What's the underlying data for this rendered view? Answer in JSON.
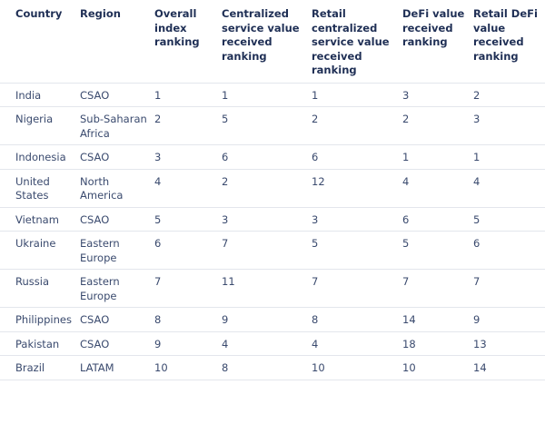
{
  "chart_data": {
    "type": "table",
    "columns": [
      "Country",
      "Region",
      "Overall index ranking",
      "Centralized service value received ranking",
      "Retail centralized service value received ranking",
      "DeFi value received ranking",
      "Retail DeFi value received ranking"
    ],
    "rows": [
      [
        "India",
        "CSAO",
        "1",
        "1",
        "1",
        "3",
        "2"
      ],
      [
        "Nigeria",
        "Sub-Saharan Africa",
        "2",
        "5",
        "2",
        "2",
        "3"
      ],
      [
        "Indonesia",
        "CSAO",
        "3",
        "6",
        "6",
        "1",
        "1"
      ],
      [
        "United States",
        "North America",
        "4",
        "2",
        "12",
        "4",
        "4"
      ],
      [
        "Vietnam",
        "CSAO",
        "5",
        "3",
        "3",
        "6",
        "5"
      ],
      [
        "Ukraine",
        "Eastern Europe",
        "6",
        "7",
        "5",
        "5",
        "6"
      ],
      [
        "Russia",
        "Eastern Europe",
        "7",
        "11",
        "7",
        "7",
        "7"
      ],
      [
        "Philippines",
        "CSAO",
        "8",
        "9",
        "8",
        "14",
        "9"
      ],
      [
        "Pakistan",
        "CSAO",
        "9",
        "4",
        "4",
        "18",
        "13"
      ],
      [
        "Brazil",
        "LATAM",
        "10",
        "8",
        "10",
        "10",
        "14"
      ]
    ]
  }
}
